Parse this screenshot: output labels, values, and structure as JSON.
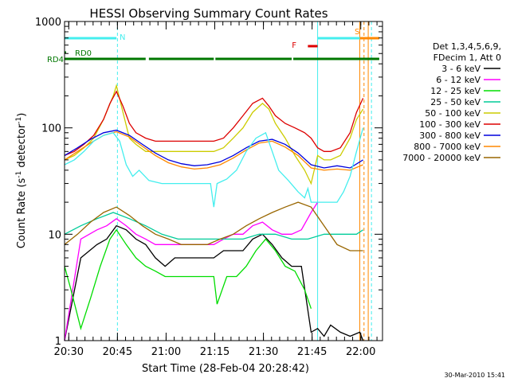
{
  "chart_data": {
    "type": "line",
    "title": "HESSI Observing Summary Count Rates",
    "xlabel": "Start Time (28-Feb-04 20:28:42)",
    "ylabel": "Count Rate (s",
    "ylabel_sup": "-1",
    "ylabel_tail": " detector",
    "ylabel_sup2": "-1",
    "ylabel_close": ")",
    "x_units": "minutes since 20:28:42",
    "xlim": [
      0,
      98
    ],
    "ylim": [
      1,
      1000
    ],
    "y_scale": "log",
    "x_ticks": [
      {
        "x": 1.3,
        "label": "20:30"
      },
      {
        "x": 16.3,
        "label": "20:45"
      },
      {
        "x": 31.3,
        "label": "21:00"
      },
      {
        "x": 46.3,
        "label": "21:15"
      },
      {
        "x": 61.3,
        "label": "21:30"
      },
      {
        "x": 76.3,
        "label": "21:45"
      },
      {
        "x": 91.3,
        "label": "22:00"
      }
    ],
    "y_ticks": [
      {
        "y": 1,
        "label": "1"
      },
      {
        "y": 10,
        "label": "10"
      },
      {
        "y": 100,
        "label": "100"
      },
      {
        "y": 1000,
        "label": "1000"
      }
    ],
    "legend_header": [
      "Det 1,3,4,5,6,9,",
      "FDecim 1, Att 0"
    ],
    "legend_position": "right",
    "series": [
      {
        "name": "3 - 6 keV",
        "color": "#000000",
        "x": [
          0,
          5,
          10,
          13,
          16,
          19,
          22,
          25,
          28,
          31,
          34,
          37,
          40,
          43,
          46,
          49,
          52,
          55,
          58,
          61,
          64,
          67,
          70,
          73,
          76,
          78,
          80,
          82,
          85,
          88,
          91,
          92
        ],
        "y": [
          0,
          6,
          8,
          9,
          12,
          11,
          9,
          8,
          6,
          5,
          6,
          6,
          6,
          6,
          6,
          7,
          7,
          7,
          9,
          10,
          8,
          6,
          5,
          5,
          1.2,
          1.3,
          1.1,
          1.4,
          1.2,
          1.1,
          1.2,
          0
        ]
      },
      {
        "name": "6 - 12 keV",
        "color": "#ff00ff",
        "x": [
          0,
          5,
          10,
          13,
          16,
          19,
          22,
          25,
          28,
          31,
          34,
          37,
          40,
          43,
          46,
          49,
          52,
          55,
          58,
          61,
          64,
          67,
          70,
          73,
          76,
          78
        ],
        "y": [
          0,
          9,
          11,
          12,
          14,
          12,
          10,
          9,
          8,
          8,
          8,
          8,
          8,
          8,
          8,
          9,
          10,
          10,
          12,
          13,
          11,
          10,
          10,
          11,
          16,
          20
        ]
      },
      {
        "name": "12 - 25 keV",
        "color": "#00dd00",
        "x": [
          0,
          2,
          5,
          8,
          11,
          14,
          16,
          19,
          22,
          25,
          28,
          31,
          34,
          37,
          40,
          43,
          46,
          47,
          50,
          53,
          56,
          59,
          62,
          65,
          68,
          71,
          74,
          76
        ],
        "y": [
          5,
          3,
          1.3,
          2.5,
          5,
          9,
          11,
          8,
          6,
          5,
          4.5,
          4,
          4,
          4,
          4,
          4,
          4,
          2.2,
          4,
          4,
          5,
          7,
          9,
          7,
          5,
          4.5,
          3,
          2
        ]
      },
      {
        "name": "25 - 50 keV",
        "color": "#00cc99",
        "x": [
          0,
          5,
          10,
          15,
          20,
          25,
          30,
          35,
          40,
          45,
          50,
          55,
          60,
          65,
          70,
          75,
          80,
          85,
          90,
          92
        ],
        "y": [
          10,
          12,
          14,
          16,
          14,
          12,
          10,
          9,
          9,
          9,
          9,
          9,
          10,
          10,
          9,
          9,
          10,
          10,
          10,
          11
        ]
      },
      {
        "name": "50 - 100 keV",
        "color": "#cccc00",
        "x": [
          0,
          3,
          6,
          9,
          12,
          15,
          16,
          18,
          20,
          22,
          25,
          28,
          31,
          34,
          37,
          40,
          43,
          46,
          49,
          52,
          55,
          58,
          61,
          63,
          65,
          68,
          71,
          74,
          76,
          78,
          80,
          82,
          85,
          88,
          90,
          92
        ],
        "y": [
          50,
          55,
          65,
          80,
          120,
          200,
          250,
          140,
          80,
          70,
          60,
          60,
          60,
          60,
          60,
          60,
          60,
          60,
          65,
          80,
          100,
          140,
          170,
          150,
          110,
          80,
          55,
          40,
          30,
          55,
          50,
          50,
          55,
          80,
          120,
          150
        ]
      },
      {
        "name": "100 - 300 keV",
        "color": "#dd0000",
        "x": [
          0,
          3,
          6,
          9,
          12,
          14,
          16,
          18,
          20,
          22,
          25,
          28,
          31,
          34,
          37,
          40,
          43,
          46,
          49,
          52,
          55,
          58,
          61,
          63,
          65,
          68,
          71,
          74,
          76,
          78,
          80,
          82,
          85,
          88,
          90,
          92
        ],
        "y": [
          55,
          60,
          70,
          85,
          120,
          170,
          220,
          160,
          110,
          90,
          80,
          75,
          75,
          75,
          75,
          75,
          75,
          75,
          80,
          100,
          130,
          170,
          190,
          160,
          130,
          110,
          100,
          90,
          80,
          65,
          60,
          60,
          65,
          90,
          140,
          190
        ]
      },
      {
        "name": "300 - 800 keV",
        "color": "#0000dd",
        "x": [
          0,
          4,
          8,
          12,
          16,
          20,
          24,
          28,
          32,
          36,
          40,
          44,
          48,
          52,
          56,
          60,
          64,
          68,
          72,
          76,
          80,
          84,
          88,
          92
        ],
        "y": [
          55,
          65,
          78,
          90,
          95,
          85,
          70,
          58,
          50,
          46,
          44,
          45,
          48,
          55,
          65,
          75,
          78,
          70,
          58,
          45,
          42,
          44,
          42,
          50
        ]
      },
      {
        "name": "800 - 7000 keV",
        "color": "#ff8800",
        "x": [
          0,
          4,
          8,
          12,
          16,
          20,
          24,
          28,
          32,
          36,
          40,
          44,
          48,
          52,
          56,
          60,
          64,
          68,
          72,
          76,
          80,
          84,
          88,
          92
        ],
        "y": [
          50,
          60,
          72,
          85,
          92,
          82,
          67,
          55,
          47,
          43,
          41,
          42,
          45,
          52,
          62,
          72,
          75,
          66,
          55,
          42,
          40,
          41,
          40,
          45
        ]
      },
      {
        "name": "7000 - 20000 keV",
        "color": "#996600",
        "x": [
          0,
          4,
          8,
          12,
          16,
          20,
          24,
          28,
          32,
          36,
          40,
          44,
          48,
          52,
          56,
          60,
          64,
          68,
          72,
          76,
          80,
          84,
          88,
          92
        ],
        "y": [
          8,
          10,
          13,
          16,
          18,
          15,
          12,
          10,
          9,
          8,
          8,
          8,
          9,
          10,
          12,
          14,
          16,
          18,
          20,
          18,
          12,
          8,
          7,
          7
        ]
      }
    ],
    "cyan_series": {
      "color": "#44eeee",
      "x": [
        0,
        3,
        6,
        9,
        12,
        15,
        17,
        19,
        21,
        23,
        26,
        30,
        35,
        40,
        45,
        46,
        47,
        50,
        53,
        56,
        59,
        62,
        64,
        66,
        69,
        72,
        74,
        75,
        76,
        78,
        80,
        82,
        84,
        86,
        88,
        90,
        92
      ],
      "y": [
        45,
        50,
        60,
        75,
        85,
        90,
        75,
        45,
        35,
        40,
        32,
        30,
        30,
        30,
        30,
        18,
        30,
        33,
        40,
        60,
        80,
        90,
        60,
        40,
        32,
        25,
        22,
        27,
        20,
        20,
        20,
        20,
        20,
        25,
        35,
        60,
        100
      ]
    },
    "state_bars": {
      "N": {
        "label": "N",
        "color": "#44eeee",
        "segments": [
          [
            0,
            16
          ],
          [
            78,
            92
          ]
        ]
      },
      "RD0": {
        "label": "RD0",
        "color": "#007700",
        "segments": [
          [
            0,
            0.5
          ]
        ]
      },
      "RD4": {
        "label": "RD4",
        "color": "#007700",
        "segments": [
          [
            0,
            25
          ],
          [
            26,
            46
          ],
          [
            46.5,
            70
          ],
          [
            70.5,
            97
          ]
        ]
      },
      "F": {
        "label": "F",
        "color": "#dd0000",
        "segments": [
          [
            75,
            78
          ]
        ]
      },
      "S": {
        "label": "S",
        "color": "#ff8800",
        "segments": [
          [
            91,
            97
          ]
        ]
      }
    },
    "vertical_lines": [
      {
        "x": 0,
        "color": "#44eeee",
        "dashed": false
      },
      {
        "x": 16.3,
        "color": "#44eeee",
        "dashed": true
      },
      {
        "x": 78,
        "color": "#44eeee",
        "dashed": false
      },
      {
        "x": 91,
        "color": "#ff8800",
        "dashed": false
      },
      {
        "x": 92.3,
        "color": "#ff8800",
        "dashed": true
      },
      {
        "x": 93.6,
        "color": "#ff8800",
        "dashed": false
      },
      {
        "x": 94.6,
        "color": "#44eeee",
        "dashed": true
      }
    ],
    "footer_stamp": "30-Mar-2010 15:41"
  }
}
